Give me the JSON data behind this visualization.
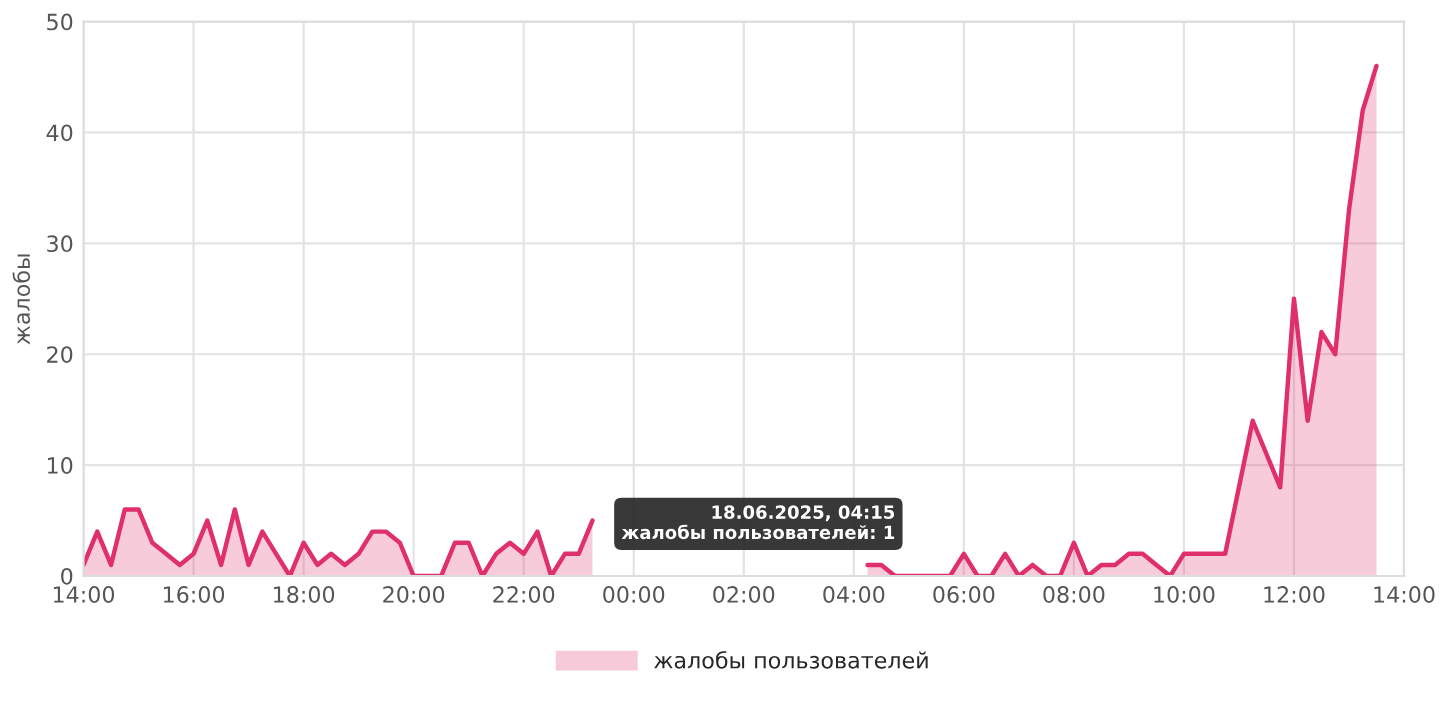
{
  "chart_data": {
    "type": "area",
    "ylabel": "жалобы",
    "x": [
      "2025-06-17T14:00",
      "2025-06-17T14:15",
      "2025-06-17T14:30",
      "2025-06-17T14:45",
      "2025-06-17T15:00",
      "2025-06-17T15:15",
      "2025-06-17T15:30",
      "2025-06-17T15:45",
      "2025-06-17T16:00",
      "2025-06-17T16:15",
      "2025-06-17T16:30",
      "2025-06-17T16:45",
      "2025-06-17T17:00",
      "2025-06-17T17:15",
      "2025-06-17T17:30",
      "2025-06-17T17:45",
      "2025-06-17T18:00",
      "2025-06-17T18:15",
      "2025-06-17T18:30",
      "2025-06-17T18:45",
      "2025-06-17T19:00",
      "2025-06-17T19:15",
      "2025-06-17T19:30",
      "2025-06-17T19:45",
      "2025-06-17T20:00",
      "2025-06-17T20:15",
      "2025-06-17T20:30",
      "2025-06-17T20:45",
      "2025-06-17T21:00",
      "2025-06-17T21:15",
      "2025-06-17T21:30",
      "2025-06-17T21:45",
      "2025-06-17T22:00",
      "2025-06-17T22:15",
      "2025-06-17T22:30",
      "2025-06-17T22:45",
      "2025-06-17T23:00",
      "2025-06-17T23:15",
      "2025-06-17T23:30",
      "2025-06-18T04:00",
      "2025-06-18T04:15",
      "2025-06-18T04:30",
      "2025-06-18T04:45",
      "2025-06-18T05:00",
      "2025-06-18T05:15",
      "2025-06-18T05:30",
      "2025-06-18T05:45",
      "2025-06-18T06:00",
      "2025-06-18T06:15",
      "2025-06-18T06:30",
      "2025-06-18T06:45",
      "2025-06-18T07:00",
      "2025-06-18T07:15",
      "2025-06-18T07:30",
      "2025-06-18T07:45",
      "2025-06-18T08:00",
      "2025-06-18T08:15",
      "2025-06-18T08:30",
      "2025-06-18T08:45",
      "2025-06-18T09:00",
      "2025-06-18T09:15",
      "2025-06-18T09:30",
      "2025-06-18T09:45",
      "2025-06-18T10:00",
      "2025-06-18T10:15",
      "2025-06-18T10:30",
      "2025-06-18T10:45",
      "2025-06-18T11:15",
      "2025-06-18T11:45",
      "2025-06-18T12:00",
      "2025-06-18T12:15",
      "2025-06-18T12:30",
      "2025-06-18T12:45",
      "2025-06-18T13:00",
      "2025-06-18T13:15",
      "2025-06-18T13:30"
    ],
    "series": [
      {
        "name": "жалобы пользователей",
        "color": "#e0306a",
        "values": [
          1,
          4,
          1,
          6,
          6,
          3,
          2,
          1,
          2,
          5,
          1,
          6,
          1,
          4,
          2,
          0,
          3,
          1,
          2,
          1,
          2,
          4,
          4,
          3,
          0,
          0,
          0,
          3,
          3,
          0,
          2,
          3,
          2,
          4,
          0,
          2,
          2,
          5,
          null,
          null,
          1,
          1,
          0,
          0,
          0,
          0,
          0,
          2,
          0,
          0,
          2,
          0,
          1,
          0,
          0,
          3,
          0,
          1,
          1,
          2,
          2,
          1,
          0,
          2,
          2,
          2,
          2,
          14,
          8,
          25,
          14,
          22,
          20,
          33,
          42,
          46
        ]
      }
    ],
    "xlim": [
      "2025-06-17T14:00",
      "2025-06-18T14:00"
    ],
    "ylim": [
      0,
      50
    ],
    "xticks": [
      {
        "value": "2025-06-17T14:00",
        "label": "14:00"
      },
      {
        "value": "2025-06-17T16:00",
        "label": "16:00"
      },
      {
        "value": "2025-06-17T18:00",
        "label": "18:00"
      },
      {
        "value": "2025-06-17T20:00",
        "label": "20:00"
      },
      {
        "value": "2025-06-17T22:00",
        "label": "22:00"
      },
      {
        "value": "2025-06-18T00:00",
        "label": "00:00"
      },
      {
        "value": "2025-06-18T02:00",
        "label": "02:00"
      },
      {
        "value": "2025-06-18T04:00",
        "label": "04:00"
      },
      {
        "value": "2025-06-18T06:00",
        "label": "06:00"
      },
      {
        "value": "2025-06-18T08:00",
        "label": "08:00"
      },
      {
        "value": "2025-06-18T10:00",
        "label": "10:00"
      },
      {
        "value": "2025-06-18T12:00",
        "label": "12:00"
      },
      {
        "value": "2025-06-18T14:00",
        "label": "14:00"
      }
    ],
    "yticks": [
      0,
      10,
      20,
      30,
      40,
      50
    ],
    "annotations": [
      {
        "text": "18.06.2025, 04:15\nжалобы пользователей: 1",
        "x": "2025-06-18T04:15",
        "y": 1
      }
    ],
    "grid": true,
    "legend": "bottom",
    "marker": "none",
    "line_style": "solid"
  }
}
